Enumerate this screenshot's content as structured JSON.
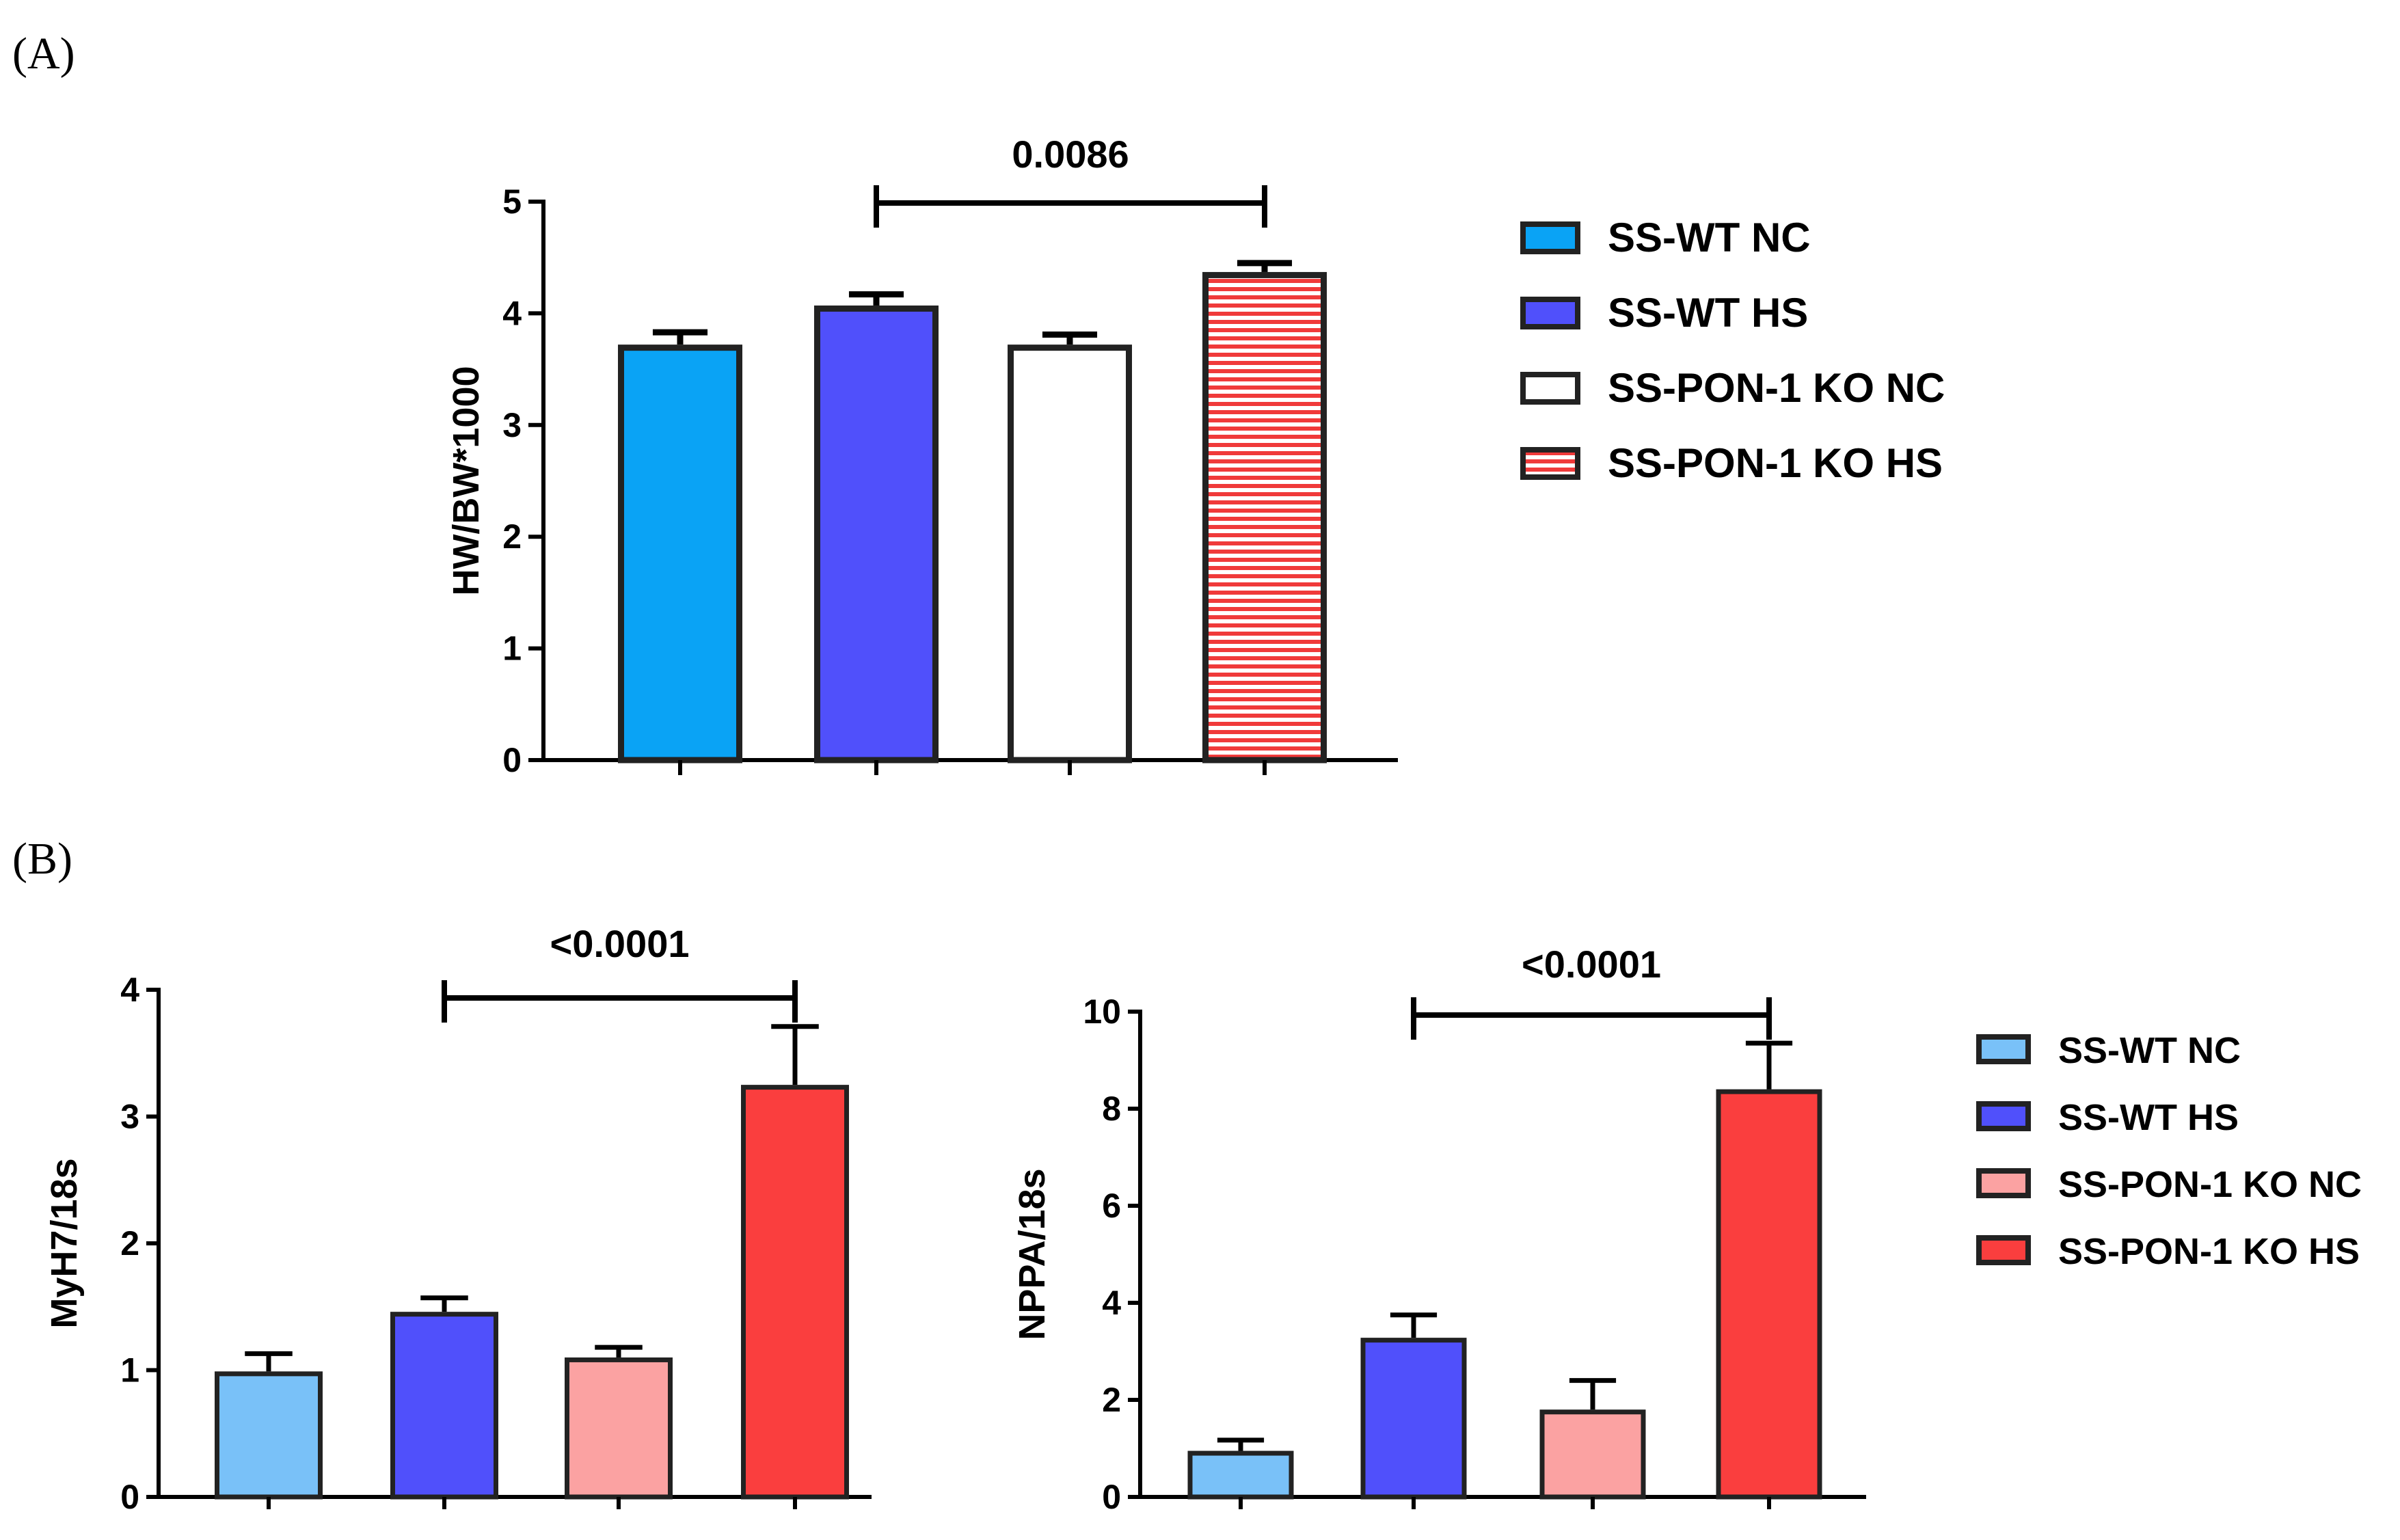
{
  "panels": [
    {
      "label": "(A)"
    },
    {
      "label": "(B)"
    }
  ],
  "chart_data": [
    {
      "type": "bar",
      "ylabel": "HW/BW*1000",
      "ylim": [
        0,
        5
      ],
      "yticks": [
        "0",
        "1",
        "2",
        "3",
        "4",
        "5"
      ],
      "categories": [
        "SS-WT NC",
        "SS-WT HS",
        "SS-PON-1 KO NC",
        "SS-PON-1 KO HS"
      ],
      "values": [
        3.72,
        4.07,
        3.72,
        4.37
      ],
      "errors": [
        0.11,
        0.1,
        0.09,
        0.08
      ],
      "colors": [
        "#0aa3f5",
        "#5050fb",
        "#ffffff",
        "#f03a3a"
      ],
      "fill_patterns": [
        "solid",
        "solid",
        "solid",
        "horizontal-stripes"
      ],
      "significance": {
        "from": 1,
        "to": 3,
        "label": "0.0086"
      },
      "legend": [
        "SS-WT NC",
        "SS-WT HS",
        "SS-PON-1 KO NC",
        "SS-PON-1 KO HS"
      ],
      "legend_position": "right"
    },
    {
      "type": "bar",
      "ylabel": "MyH7/18s",
      "ylim": [
        0,
        4
      ],
      "yticks": [
        "0",
        "1",
        "2",
        "3",
        "4"
      ],
      "categories": [
        "SS-WT NC",
        "SS-WT HS",
        "SS-PON-1 KO NC",
        "SS-PON-1 KO HS"
      ],
      "values": [
        0.99,
        1.46,
        1.1,
        3.25
      ],
      "errors": [
        0.14,
        0.11,
        0.08,
        0.46
      ],
      "colors": [
        "#79c1f8",
        "#5050fb",
        "#fba2a2",
        "#fa3e3e"
      ],
      "significance": {
        "from": 1,
        "to": 3,
        "label": "<0.0001"
      }
    },
    {
      "type": "bar",
      "ylabel": "NPPA/18s",
      "ylim": [
        0,
        10
      ],
      "yticks": [
        "0",
        "2",
        "4",
        "6",
        "8",
        "10"
      ],
      "categories": [
        "SS-WT NC",
        "SS-WT HS",
        "SS-PON-1 KO NC",
        "SS-PON-1 KO HS"
      ],
      "values": [
        0.95,
        3.28,
        1.8,
        8.4
      ],
      "errors": [
        0.22,
        0.47,
        0.6,
        0.95
      ],
      "colors": [
        "#79c1f8",
        "#5050fb",
        "#fba2a2",
        "#fa3e3e"
      ],
      "significance": {
        "from": 1,
        "to": 3,
        "label": "<0.0001"
      },
      "legend": [
        "SS-WT NC",
        "SS-WT HS",
        "SS-PON-1 KO NC",
        "SS-PON-1 KO HS"
      ],
      "legend_position": "right"
    }
  ]
}
